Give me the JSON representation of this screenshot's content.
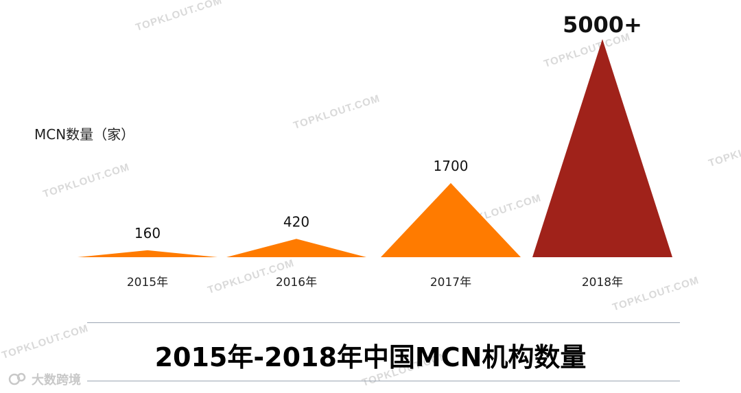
{
  "watermark_text": "TOPKLOUT.COM",
  "colors": {
    "regular": "#FF7B00",
    "highlight": "#A0221A",
    "axis_line": "#9AA4B2"
  },
  "chart_data": {
    "type": "bar",
    "mark_shape": "triangle",
    "title": "2015年-2018年中国MCN机构数量",
    "ylabel": "MCN数量（家）",
    "xlabel": "",
    "categories": [
      "2015年",
      "2016年",
      "2017年",
      "2018年"
    ],
    "values": [
      160,
      420,
      1700,
      5000
    ],
    "data_labels": [
      "160",
      "420",
      "1700",
      "5000+"
    ],
    "highlight_index": 3,
    "ylim": [
      0,
      5000
    ],
    "grid": false,
    "legend": "none"
  },
  "logo": {
    "text": "大数跨境"
  }
}
